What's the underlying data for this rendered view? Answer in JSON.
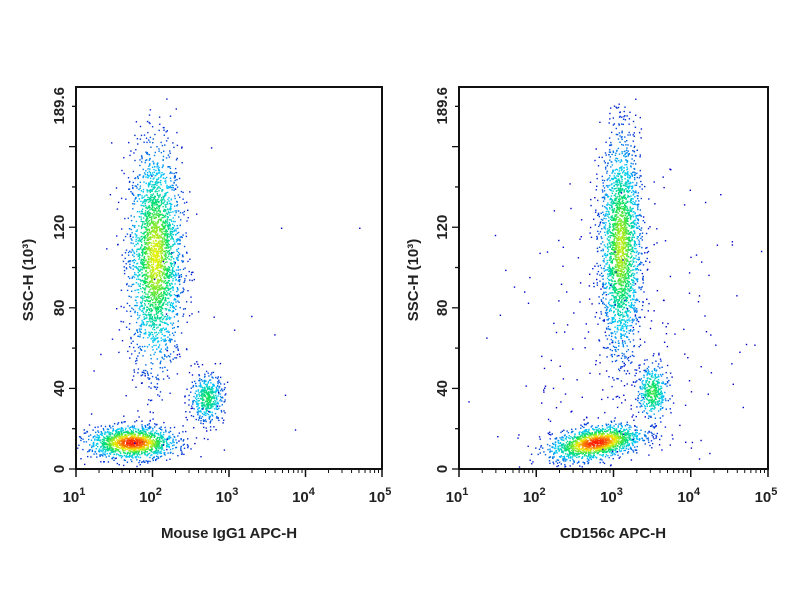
{
  "chart_data": [
    {
      "type": "scatter",
      "subtype": "flow-cytometry density dot plot",
      "xlabel": "Mouse IgG1 APC-H",
      "ylabel": "SSC-H (10³)",
      "xscale": "log",
      "xlim": [
        10,
        100000
      ],
      "ylim": [
        0,
        189.6
      ],
      "xticks": [
        {
          "base": "10",
          "exp": "1"
        },
        {
          "base": "10",
          "exp": "2"
        },
        {
          "base": "10",
          "exp": "3"
        },
        {
          "base": "10",
          "exp": "4"
        },
        {
          "base": "10",
          "exp": "5"
        }
      ],
      "yticks": [
        "0",
        "40",
        "80",
        "120",
        "189.6"
      ],
      "ytick_values": [
        0,
        40,
        80,
        120,
        189.6
      ],
      "color_scale": [
        "#0000c8",
        "#00c8ff",
        "#00e060",
        "#f0f000",
        "#ff2000"
      ],
      "populations": [
        {
          "x": 110,
          "y": 105,
          "x_sd_decades": 0.17,
          "y_sd": 27,
          "count": 2600,
          "peak_density": 0.72
        },
        {
          "x": 55,
          "y": 13,
          "x_sd_decades": 0.28,
          "y_sd": 4,
          "count": 1400,
          "peak_density": 1.0
        },
        {
          "x": 520,
          "y": 35,
          "x_sd_decades": 0.11,
          "y_sd": 6,
          "count": 450,
          "peak_density": 0.5
        },
        {
          "x": 300,
          "y": 50,
          "x_sd_decades": 0.9,
          "y_sd": 40,
          "count": 60,
          "peak_density": 0.0
        }
      ]
    },
    {
      "type": "scatter",
      "subtype": "flow-cytometry density dot plot",
      "xlabel": "CD156c APC-H",
      "ylabel": "SSC-H (10³)",
      "xscale": "log",
      "xlim": [
        10,
        100000
      ],
      "ylim": [
        0,
        189.6
      ],
      "xticks": [
        {
          "base": "10",
          "exp": "1"
        },
        {
          "base": "10",
          "exp": "2"
        },
        {
          "base": "10",
          "exp": "3"
        },
        {
          "base": "10",
          "exp": "4"
        },
        {
          "base": "10",
          "exp": "5"
        }
      ],
      "yticks": [
        "0",
        "40",
        "80",
        "120",
        "189.6"
      ],
      "ytick_values": [
        0,
        40,
        80,
        120,
        189.6
      ],
      "color_scale": [
        "#0000c8",
        "#00c8ff",
        "#00e060",
        "#f0f000",
        "#ff2000"
      ],
      "populations": [
        {
          "x": 1250,
          "y": 110,
          "x_sd_decades": 0.13,
          "y_sd": 27,
          "count": 2300,
          "peak_density": 0.68
        },
        {
          "x": 600,
          "y": 13,
          "x_sd_decades": 0.3,
          "y_sd": 4,
          "slope_per_decade": 6,
          "count": 1500,
          "peak_density": 1.0
        },
        {
          "x": 3200,
          "y": 38,
          "x_sd_decades": 0.1,
          "y_sd": 7,
          "count": 400,
          "peak_density": 0.55
        },
        {
          "x": 1500,
          "y": 60,
          "x_sd_decades": 0.8,
          "y_sd": 40,
          "count": 220,
          "peak_density": 0.0
        }
      ]
    }
  ]
}
